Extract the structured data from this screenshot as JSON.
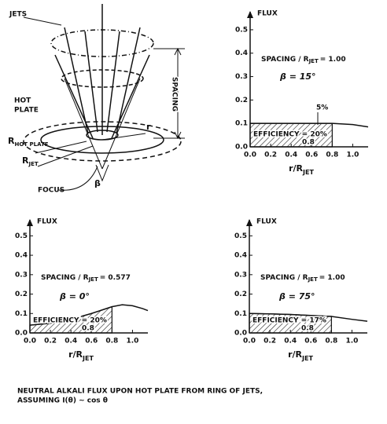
{
  "diagram": {
    "jets": "JETS",
    "spacing": "SPACING",
    "hot_plate": [
      "HOT",
      "PLATE"
    ],
    "r_hot_plate": {
      "text": "R",
      "sub": "HOT PLATE"
    },
    "r_jet": {
      "text": "R",
      "sub": "JET"
    },
    "r": "r",
    "focus": "FOCUS",
    "beta": "β"
  },
  "chart_data": [
    {
      "type": "line",
      "ylabel": "FLUX",
      "xlabel": {
        "text": "r/R",
        "sub": "JET"
      },
      "spacing_label": {
        "text": "SPACING / R",
        "sub": "JET",
        "rest": "= 1.00"
      },
      "beta_label": "β = 15°",
      "efficiency_label": "EFFICIENCY = 20%",
      "shade_label": "0.8",
      "note": "5%",
      "x": [
        0,
        0.2,
        0.4,
        0.6,
        0.8,
        1.0,
        1.15
      ],
      "values": [
        0.1,
        0.1,
        0.1,
        0.1,
        0.1,
        0.095,
        0.085
      ],
      "shade_x": [
        0,
        0.8
      ],
      "xlim": [
        0,
        1.15
      ],
      "ylim": [
        0,
        0.55
      ],
      "xticks": [
        {
          "value": 0,
          "label": "0.0"
        },
        0.2,
        0.4,
        0.6,
        0.8,
        {
          "value": 1,
          "label": "1.0"
        }
      ],
      "yticks": [
        {
          "value": 0,
          "label": "0.0"
        },
        0.1,
        0.2,
        0.3,
        0.4,
        0.5
      ],
      "color": "#111111"
    },
    {
      "type": "line",
      "ylabel": "FLUX",
      "xlabel": {
        "text": "r/R",
        "sub": "JET"
      },
      "spacing_label": {
        "text": "SPACING / R",
        "sub": "JET",
        "rest": "= 0.577"
      },
      "beta_label": "β = 0°",
      "efficiency_label": "EFFICIENCY = 20%",
      "shade_label": "0.8",
      "x": [
        0,
        0.2,
        0.4,
        0.6,
        0.8,
        0.9,
        1.0,
        1.1,
        1.15
      ],
      "values": [
        0.04,
        0.05,
        0.07,
        0.1,
        0.135,
        0.145,
        0.14,
        0.125,
        0.115
      ],
      "shade_x": [
        0,
        0.8
      ],
      "xlim": [
        0,
        1.15
      ],
      "ylim": [
        0,
        0.55
      ],
      "xticks": [
        {
          "value": 0,
          "label": "0.0"
        },
        0.2,
        0.4,
        0.6,
        0.8,
        {
          "value": 1,
          "label": "1.0"
        }
      ],
      "yticks": [
        {
          "value": 0,
          "label": "0.0"
        },
        0.1,
        0.2,
        0.3,
        0.4,
        0.5
      ],
      "color": "#111111"
    },
    {
      "type": "line",
      "ylabel": "FLUX",
      "xlabel": {
        "text": "r/R",
        "sub": "JET"
      },
      "spacing_label": {
        "text": "SPACING / R",
        "sub": "JET",
        "rest": "= 1.00"
      },
      "beta_label": "β = 75°",
      "efficiency_label": "EFFICIENCY = 17%",
      "shade_label": "0.8",
      "x": [
        0,
        0.2,
        0.4,
        0.6,
        0.8,
        1.0,
        1.15
      ],
      "values": [
        0.1,
        0.098,
        0.095,
        0.09,
        0.085,
        0.07,
        0.06
      ],
      "shade_x": [
        0,
        0.8
      ],
      "xlim": [
        0,
        1.15
      ],
      "ylim": [
        0,
        0.55
      ],
      "xticks": [
        {
          "value": 0,
          "label": "0.0"
        },
        0.2,
        0.4,
        0.6,
        0.8,
        {
          "value": 1,
          "label": "1.0"
        }
      ],
      "yticks": [
        {
          "value": 0,
          "label": "0.0"
        },
        0.1,
        0.2,
        0.3,
        0.4,
        0.5
      ],
      "color": "#111111"
    }
  ],
  "caption": [
    "NEUTRAL ALKALI FLUX UPON HOT PLATE FROM RING OF JETS,",
    "ASSUMING I(θ) ~ cos θ"
  ]
}
